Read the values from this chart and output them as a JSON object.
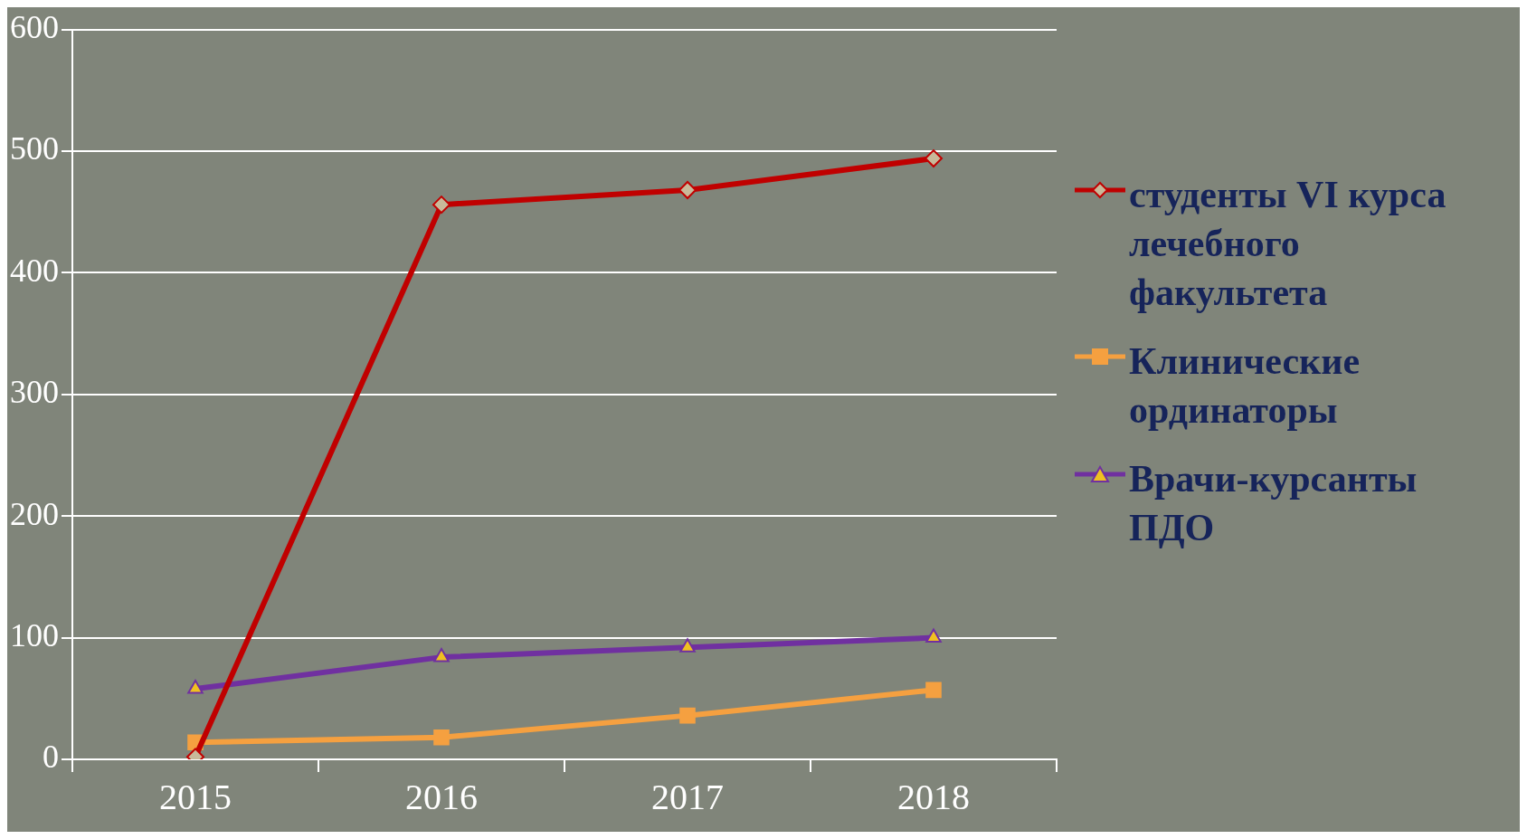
{
  "chart_data": {
    "type": "line",
    "categories": [
      "2015",
      "2016",
      "2017",
      "2018"
    ],
    "series": [
      {
        "name": "студенты VI курса лечебного факультета",
        "color": "#c00000",
        "marker": "diamond",
        "values": [
          2,
          456,
          468,
          494
        ]
      },
      {
        "name": "Клинические ординаторы",
        "color": "#f5a040",
        "marker": "square",
        "values": [
          14,
          18,
          36,
          57
        ]
      },
      {
        "name": "Врачи-курсанты ПДО",
        "color": "#7030a0",
        "marker": "triangle",
        "values": [
          58,
          84,
          92,
          100
        ]
      }
    ],
    "ylim": [
      0,
      600
    ],
    "yticks": [
      0,
      100,
      200,
      300,
      400,
      500,
      600
    ],
    "grid": "y",
    "legend": "right",
    "line_style": "solid"
  }
}
